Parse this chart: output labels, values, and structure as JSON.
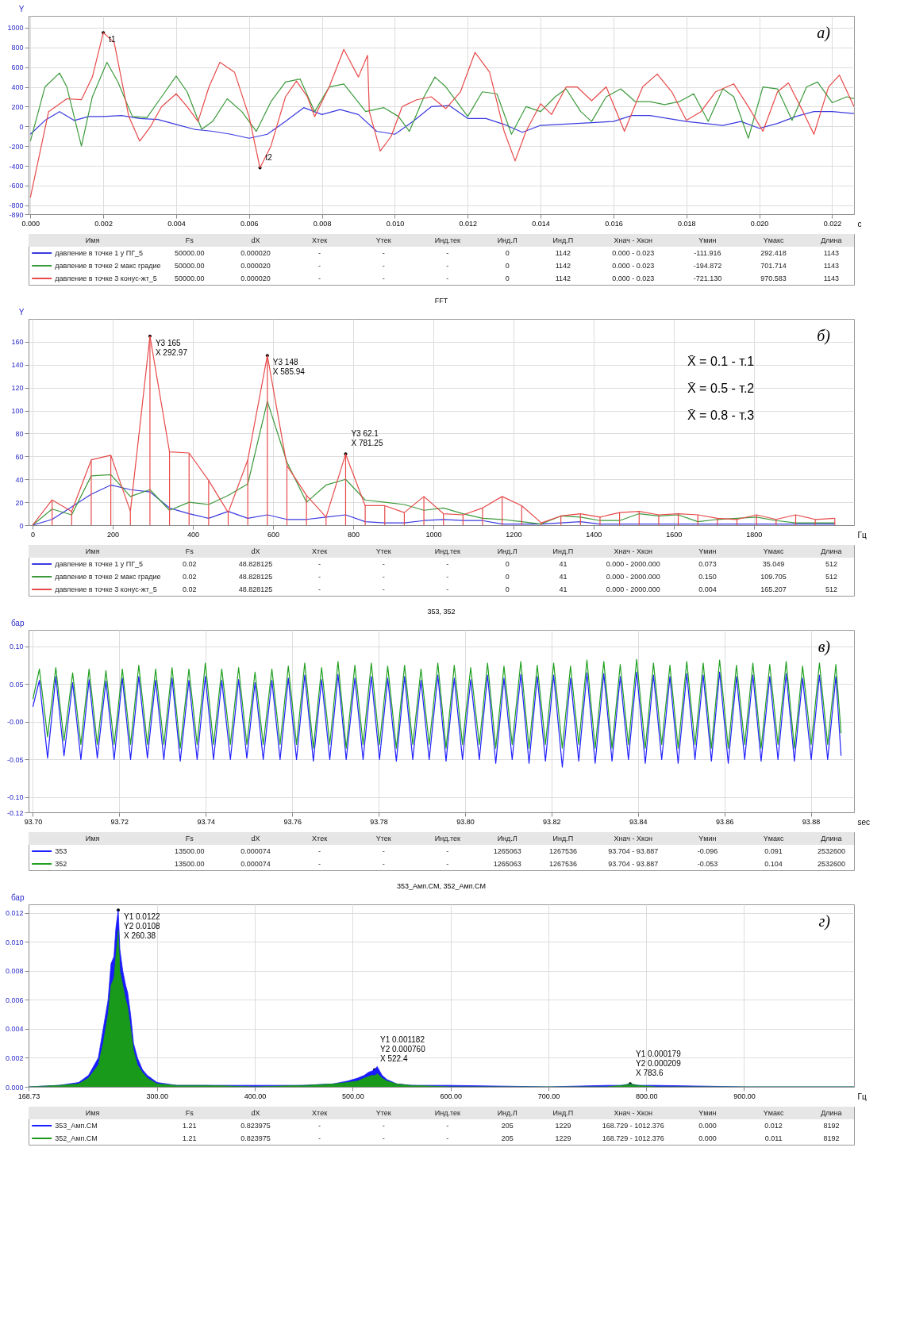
{
  "chart_data": [
    {
      "type": "line",
      "xlabel": "c",
      "ylabel": "Y",
      "xlim": [
        -5e-05,
        0.0226
      ],
      "ylim": [
        -890,
        1120
      ],
      "xticks": [
        {
          "value": 0,
          "label": "0.000"
        },
        0.002,
        0.004,
        0.006,
        0.008,
        {
          "value": 0.01,
          "label": "0.010"
        },
        0.012,
        0.014,
        0.016,
        0.018,
        {
          "value": 0.02,
          "label": "0.020"
        },
        0.022
      ],
      "yticks": [
        -890,
        -800,
        -600,
        -400,
        -200,
        0,
        200,
        400,
        600,
        800,
        1000
      ],
      "grid": true,
      "legend": "bottom",
      "series": [
        {
          "name": "давление в точке 1 у ПГ_5",
          "color": "#3a3ae0",
          "x": [
            0,
            0.0004,
            0.0008,
            0.0012,
            0.0016,
            0.002,
            0.0025,
            0.003,
            0.0035,
            0.004,
            0.0045,
            0.005,
            0.0055,
            0.006,
            0.0065,
            0.007,
            0.0075,
            0.008,
            0.0085,
            0.009,
            0.0095,
            0.01,
            0.0105,
            0.011,
            0.0115,
            0.012,
            0.0125,
            0.013,
            0.0135,
            0.014,
            0.015,
            0.016,
            0.0165,
            0.017,
            0.018,
            0.019,
            0.0195,
            0.02,
            0.0205,
            0.021,
            0.0215,
            0.022,
            0.0226
          ],
          "values": [
            -80,
            60,
            150,
            60,
            100,
            100,
            110,
            80,
            70,
            20,
            -30,
            -50,
            -80,
            -120,
            -80,
            50,
            190,
            120,
            170,
            120,
            -50,
            -80,
            50,
            200,
            210,
            80,
            80,
            20,
            -60,
            10,
            30,
            50,
            110,
            110,
            50,
            10,
            50,
            -20,
            30,
            100,
            150,
            150,
            130
          ]
        },
        {
          "name": "давление в точке 2 макс градие",
          "color": "#3c9a3c",
          "x": [
            0,
            0.0004,
            0.0008,
            0.001,
            0.0014,
            0.0017,
            0.0021,
            0.0024,
            0.0028,
            0.0032,
            0.0036,
            0.004,
            0.0043,
            0.0047,
            0.005,
            0.0054,
            0.0058,
            0.0062,
            0.0066,
            0.007,
            0.0074,
            0.0078,
            0.0082,
            0.0086,
            0.0092,
            0.0097,
            0.0101,
            0.0104,
            0.0108,
            0.0111,
            0.0114,
            0.0117,
            0.012,
            0.0124,
            0.0128,
            0.0132,
            0.0136,
            0.014,
            0.0144,
            0.0147,
            0.0151,
            0.0154,
            0.0158,
            0.0162,
            0.0166,
            0.017,
            0.0174,
            0.0178,
            0.0182,
            0.0186,
            0.019,
            0.0193,
            0.0197,
            0.0201,
            0.0205,
            0.0209,
            0.0213,
            0.0216,
            0.022,
            0.0224,
            0.0226
          ],
          "values": [
            -150,
            400,
            540,
            400,
            -200,
            300,
            650,
            450,
            100,
            90,
            300,
            510,
            350,
            -30,
            50,
            280,
            150,
            -50,
            250,
            450,
            480,
            150,
            400,
            430,
            150,
            190,
            100,
            -50,
            300,
            500,
            400,
            250,
            100,
            350,
            330,
            -80,
            200,
            150,
            300,
            380,
            150,
            50,
            300,
            380,
            250,
            250,
            220,
            250,
            330,
            50,
            380,
            300,
            -120,
            400,
            380,
            60,
            400,
            450,
            240,
            300,
            280
          ]
        },
        {
          "name": "давление в точке 3 конус-жт_5",
          "color": "#e84a4a",
          "x": [
            0,
            0.0005,
            0.001,
            0.0014,
            0.0017,
            0.002,
            0.0023,
            0.0027,
            0.003,
            0.0033,
            0.0036,
            0.004,
            0.0043,
            0.0046,
            0.0049,
            0.0052,
            0.0056,
            0.006,
            0.0063,
            0.0066,
            0.007,
            0.0073,
            0.0076,
            0.0078,
            0.0082,
            0.0086,
            0.009,
            0.00925,
            0.0093,
            0.0096,
            0.0099,
            0.0102,
            0.0106,
            0.011,
            0.0114,
            0.0118,
            0.0122,
            0.0126,
            0.013,
            0.0133,
            0.0136,
            0.014,
            0.0143,
            0.0147,
            0.015,
            0.0154,
            0.0158,
            0.0163,
            0.0168,
            0.0172,
            0.0176,
            0.018,
            0.0184,
            0.0188,
            0.0193,
            0.0197,
            0.0201,
            0.0205,
            0.0208,
            0.0212,
            0.0215,
            0.0219,
            0.0222,
            0.0226
          ],
          "values": [
            -720,
            150,
            280,
            270,
            500,
            950,
            850,
            100,
            -150,
            0,
            200,
            330,
            200,
            50,
            400,
            650,
            550,
            100,
            -420,
            -200,
            300,
            460,
            300,
            100,
            400,
            780,
            500,
            720,
            150,
            -250,
            -100,
            200,
            270,
            300,
            180,
            350,
            750,
            550,
            -50,
            -350,
            -50,
            230,
            120,
            400,
            400,
            260,
            400,
            -50,
            400,
            530,
            350,
            60,
            150,
            350,
            430,
            200,
            -50,
            350,
            440,
            150,
            -80,
            400,
            520,
            200
          ]
        }
      ],
      "annotations": [
        "а)",
        {
          "text": "t1",
          "x": 0.002,
          "y": 950
        },
        {
          "text": "t2",
          "x": 0.0063,
          "y": -420
        },
        "Имя",
        "Fs",
        "dX",
        "Xтек",
        "Yтек",
        "Инд.тек",
        "Инд.Л",
        "Инд.П",
        "Xнач - Xкон",
        "Yмин",
        "Yмакс",
        "Длина",
        "50000.00",
        "0.000020",
        "-",
        "-",
        "-",
        "0",
        "1142",
        "0.000 - 0.023",
        "-111.916",
        "292.418",
        "1143",
        "50000.00",
        "0.000020",
        "-",
        "-",
        "-",
        "0",
        "1142",
        "0.000 - 0.023",
        "-194.872",
        "701.714",
        "1143",
        "50000.00",
        "0.000020",
        "-",
        "-",
        "-",
        "0",
        "1142",
        "0.000 - 0.023",
        "-721.130",
        "970.583",
        "1143"
      ]
    },
    {
      "type": "line",
      "title": "FFT",
      "xlabel": "Гц",
      "ylabel": "Y",
      "xlim": [
        0,
        2040
      ],
      "ylim": [
        0,
        180
      ],
      "xticks": [
        0,
        200,
        400,
        600,
        800,
        1000,
        1200,
        1400,
        1600,
        1800
      ],
      "yticks": [
        0,
        20,
        40,
        60,
        80,
        100,
        120,
        140,
        160
      ],
      "grid": true,
      "legend": "bottom",
      "x": [
        0,
        48.83,
        97.66,
        146.48,
        195.31,
        244.14,
        292.97,
        341.8,
        390.63,
        439.45,
        488.28,
        537.11,
        585.94,
        634.77,
        683.59,
        732.42,
        781.25,
        830.08,
        878.91,
        927.73,
        976.56,
        1025.39,
        1074.22,
        1123.05,
        1171.88,
        1220.7,
        1269.53,
        1318.36,
        1367.19,
        1416.02,
        1464.84,
        1513.67,
        1562.5,
        1611.33,
        1660.16,
        1708.98,
        1757.81,
        1806.64,
        1855.47,
        1904.3,
        1953.13,
        2001.95
      ],
      "series": [
        {
          "name": "давление в точке 1 у ПГ_5",
          "color": "#3a3ae0",
          "values": [
            0,
            5,
            16,
            27,
            35,
            31,
            29,
            15,
            10,
            6,
            12,
            6,
            9,
            5,
            5,
            7,
            9,
            3,
            2,
            2,
            4,
            5,
            4,
            4,
            1,
            1,
            1,
            2,
            3,
            1,
            1,
            1,
            1,
            1,
            1,
            1,
            1,
            1,
            1,
            1,
            1,
            1
          ]
        },
        {
          "name": "давление в точке 2 макс градие",
          "color": "#3c9a3c",
          "values": [
            0,
            14,
            9,
            43,
            44,
            25,
            31,
            13,
            20,
            18,
            26,
            36,
            108,
            55,
            20,
            35,
            40,
            22,
            20,
            18,
            13,
            15,
            10,
            6,
            5,
            3,
            1,
            8,
            7,
            4,
            4,
            10,
            8,
            9,
            3,
            5,
            6,
            7,
            4,
            2,
            2,
            2
          ]
        },
        {
          "name": "давление в точке 3 конус-жт_5",
          "color": "#e84a4a",
          "values": [
            0,
            22,
            12,
            57,
            61,
            12,
            165,
            64,
            63,
            39,
            11,
            57,
            148,
            52,
            26,
            7,
            62,
            17,
            17,
            11,
            25,
            10,
            9,
            15,
            25,
            17,
            2,
            8,
            10,
            7,
            11,
            12,
            9,
            10,
            9,
            6,
            5,
            9,
            5,
            9,
            5,
            6
          ]
        },
        {
          "color": "#e84a4a",
          "type": "bar",
          "values": [
            0,
            22,
            12,
            57,
            61,
            12,
            165,
            64,
            63,
            39,
            11,
            57,
            148,
            52,
            26,
            7,
            62,
            17,
            17,
            11,
            25,
            10,
            9,
            15,
            25,
            17,
            2,
            8,
            10,
            7,
            11,
            12,
            9,
            10,
            9,
            6,
            5,
            9,
            5,
            9,
            5,
            6
          ]
        }
      ],
      "annotations": [
        "б)",
        "X̄ = 0.1  - т.1",
        "X̄ = 0.5  - т.2",
        "X̄ = 0.8  - т.3",
        {
          "text": "Y3 165\nX 292.97",
          "x": 292.97,
          "y": 165
        },
        {
          "text": "Y3 148\nX 585.94",
          "x": 585.94,
          "y": 148
        },
        {
          "text": "Y3 62.1\nX 781.25",
          "x": 781.25,
          "y": 62.1
        },
        "Имя",
        "Fs",
        "dX",
        "Xтек",
        "Yтек",
        "Инд.тек",
        "Инд.Л",
        "Инд.П",
        "Xнач - Xкон",
        "Yмин",
        "Yмакс",
        "Длина",
        "0.02",
        "48.828125",
        "-",
        "-",
        "-",
        "0",
        "41",
        "0.000 - 2000.000",
        "0.073",
        "35.049",
        "512",
        "0.02",
        "48.828125",
        "-",
        "-",
        "-",
        "0",
        "41",
        "0.000 - 2000.000",
        "0.150",
        "109.705",
        "512",
        "0.02",
        "48.828125",
        "-",
        "-",
        "-",
        "0",
        "41",
        "0.000 - 2000.000",
        "0.004",
        "165.207",
        "512"
      ]
    },
    {
      "type": "line",
      "title": "353, 352",
      "xlabel": "sec",
      "ylabel": "бар",
      "xlim": [
        93.699,
        93.89
      ],
      "ylim": [
        -0.12,
        0.122
      ],
      "xticks": [
        {
          "value": 93.7,
          "label": "93.70"
        },
        93.72,
        93.74,
        93.76,
        93.78,
        {
          "value": 93.8,
          "label": "93.80"
        },
        93.82,
        93.84,
        93.86,
        93.88
      ],
      "yticks": [
        -0.12,
        {
          "value": -0.1,
          "label": "-0.10"
        },
        -0.05,
        {
          "value": 0,
          "label": "-0.00"
        },
        0.05,
        {
          "value": 0.1,
          "label": "0.10"
        }
      ],
      "grid": true,
      "legend": "bottom",
      "x": [
        93.7,
        93.7015,
        93.7034,
        93.7053,
        93.7072,
        93.7092,
        93.7111,
        93.713,
        93.7149,
        93.7169,
        93.7188,
        93.7207,
        93.7226,
        93.7245,
        93.7265,
        93.7284,
        93.7303,
        93.7322,
        93.7341,
        93.7361,
        93.738,
        93.7399,
        93.7418,
        93.7437,
        93.7457,
        93.7476,
        93.7495,
        93.7514,
        93.7533,
        93.7553,
        93.7572,
        93.7591,
        93.761,
        93.7629,
        93.7649,
        93.7668,
        93.7687,
        93.7706,
        93.7725,
        93.7745,
        93.7764,
        93.7783,
        93.7802,
        93.7821,
        93.7841,
        93.786,
        93.7879,
        93.7898,
        93.7917,
        93.7937,
        93.7956,
        93.7975,
        93.7994,
        93.8013,
        93.8033,
        93.8052,
        93.8071,
        93.809,
        93.8109,
        93.8129,
        93.8148,
        93.8167,
        93.8186,
        93.8205,
        93.8225,
        93.8244,
        93.8263,
        93.8282,
        93.8301,
        93.8321,
        93.834,
        93.8359,
        93.8378,
        93.8397,
        93.8417,
        93.8436,
        93.8455,
        93.8474,
        93.8493,
        93.8513,
        93.8532,
        93.8551,
        93.857,
        93.8589,
        93.8609,
        93.8628,
        93.8647,
        93.8666,
        93.8685,
        93.8705,
        93.8724,
        93.8743,
        93.8762,
        93.8781,
        93.8801,
        93.882,
        93.8839,
        93.8858,
        93.887
      ],
      "series": [
        {
          "name": "353",
          "color": "#2020ff",
          "values": [
            0.02,
            0.055,
            -0.048,
            0.06,
            -0.045,
            0.052,
            -0.05,
            0.056,
            -0.048,
            0.054,
            -0.05,
            0.058,
            -0.05,
            0.06,
            -0.048,
            0.055,
            -0.05,
            0.058,
            -0.052,
            0.055,
            -0.05,
            0.06,
            -0.05,
            0.055,
            -0.05,
            0.056,
            -0.048,
            0.052,
            -0.05,
            0.055,
            -0.05,
            0.058,
            -0.05,
            0.062,
            -0.052,
            0.056,
            -0.05,
            0.063,
            -0.05,
            0.058,
            -0.05,
            0.06,
            -0.05,
            0.058,
            -0.052,
            0.06,
            -0.05,
            0.055,
            -0.05,
            0.062,
            -0.052,
            0.058,
            -0.05,
            0.056,
            -0.05,
            0.062,
            -0.055,
            0.058,
            -0.05,
            0.063,
            -0.055,
            0.06,
            -0.052,
            0.062,
            -0.06,
            0.058,
            -0.052,
            0.065,
            -0.055,
            0.064,
            -0.052,
            0.06,
            -0.05,
            0.066,
            -0.055,
            0.062,
            -0.05,
            0.06,
            -0.055,
            0.064,
            -0.05,
            0.062,
            -0.052,
            0.066,
            -0.055,
            0.06,
            -0.05,
            0.062,
            -0.052,
            0.06,
            -0.05,
            0.064,
            -0.052,
            0.058,
            -0.05,
            0.062,
            -0.05,
            0.06,
            -0.045
          ]
        },
        {
          "name": "352",
          "color": "#22a022",
          "values": [
            0.03,
            0.07,
            -0.02,
            0.072,
            -0.025,
            0.065,
            -0.03,
            0.07,
            -0.03,
            0.068,
            -0.03,
            0.07,
            -0.03,
            0.075,
            -0.03,
            0.07,
            -0.03,
            0.072,
            -0.035,
            0.07,
            -0.03,
            0.078,
            -0.03,
            0.07,
            -0.03,
            0.072,
            -0.03,
            0.066,
            -0.03,
            0.07,
            -0.03,
            0.074,
            -0.03,
            0.078,
            -0.035,
            0.072,
            -0.03,
            0.08,
            -0.035,
            0.075,
            -0.03,
            0.078,
            -0.03,
            0.074,
            -0.035,
            0.075,
            -0.03,
            0.07,
            -0.03,
            0.078,
            -0.035,
            0.075,
            -0.03,
            0.072,
            -0.03,
            0.078,
            -0.035,
            0.074,
            -0.03,
            0.08,
            -0.035,
            0.075,
            -0.03,
            0.078,
            -0.035,
            0.074,
            -0.03,
            0.082,
            -0.035,
            0.08,
            -0.035,
            0.076,
            -0.03,
            0.083,
            -0.035,
            0.078,
            -0.03,
            0.075,
            -0.035,
            0.08,
            -0.03,
            0.078,
            -0.035,
            0.082,
            -0.035,
            0.075,
            -0.03,
            0.078,
            -0.035,
            0.076,
            -0.03,
            0.08,
            -0.035,
            0.074,
            -0.03,
            0.078,
            -0.03,
            0.076,
            -0.015
          ]
        }
      ],
      "annotations": [
        "в)",
        "Имя",
        "Fs",
        "dX",
        "Xтек",
        "Yтек",
        "Инд.тек",
        "Инд.Л",
        "Инд.П",
        "Xнач - Xкон",
        "Yмин",
        "Yмакс",
        "Длина",
        "13500.00",
        "0.000074",
        "-",
        "-",
        "-",
        "1265063",
        "1267536",
        "93.704 - 93.887",
        "-0.096",
        "0.091",
        "2532600",
        "13500.00",
        "0.000074",
        "-",
        "-",
        "-",
        "1265063",
        "1267536",
        "93.704 - 93.887",
        "-0.053",
        "0.104",
        "2532600"
      ]
    },
    {
      "type": "area",
      "title": "353_Амп.СМ, 352_Амп.СМ",
      "xlabel": "Гц",
      "ylabel": "бар",
      "xlim": [
        168.73,
        1012.376
      ],
      "ylim": [
        0,
        0.0126
      ],
      "xticks": [
        168.73,
        {
          "value": 300,
          "label": "300.00"
        },
        {
          "value": 400,
          "label": "400.00"
        },
        {
          "value": 500,
          "label": "500.00"
        },
        {
          "value": 600,
          "label": "600.00"
        },
        {
          "value": 700,
          "label": "700.00"
        },
        {
          "value": 800,
          "label": "800.00"
        },
        {
          "value": 900,
          "label": "900.00"
        }
      ],
      "yticks": [
        {
          "value": 0,
          "label": "0.000"
        },
        0.002,
        0.004,
        0.006,
        0.008,
        {
          "value": 0.01,
          "label": "0.010"
        },
        0.012
      ],
      "grid": true,
      "legend": "bottom",
      "x": [
        168.73,
        200,
        220,
        230,
        240,
        245,
        250,
        253,
        256,
        258,
        260.38,
        262,
        265,
        268,
        270,
        273,
        276,
        280,
        285,
        290,
        300,
        320,
        350,
        400,
        450,
        480,
        495,
        505,
        512,
        516,
        520,
        522.4,
        525,
        530,
        535,
        545,
        560,
        600,
        700,
        760,
        775,
        783.6,
        792,
        810,
        900,
        1012.376
      ],
      "series": [
        {
          "name": "353_Амп.СМ",
          "color": "#1a1aff",
          "values": [
            0,
            0.0001,
            0.0003,
            0.0008,
            0.002,
            0.004,
            0.006,
            0.0085,
            0.009,
            0.011,
            0.0122,
            0.0095,
            0.008,
            0.007,
            0.0065,
            0.005,
            0.003,
            0.002,
            0.0012,
            0.0008,
            0.0003,
            0.0001,
            0.0001,
            0.0001,
            0.0001,
            0.0002,
            0.0004,
            0.0006,
            0.0008,
            0.001,
            0.0011,
            0.001182,
            0.0014,
            0.0008,
            0.0005,
            0.0002,
            0.0001,
            0.0001,
            0,
            0.0001,
            0.0001,
            0.000179,
            0.0001,
            0.0001,
            0,
            0
          ]
        },
        {
          "name": "352_Амп.СМ",
          "color": "#1a9a1a",
          "values": [
            0,
            0.0001,
            0.0002,
            0.0006,
            0.0015,
            0.003,
            0.005,
            0.007,
            0.0075,
            0.009,
            0.0108,
            0.008,
            0.007,
            0.006,
            0.0055,
            0.004,
            0.0025,
            0.0015,
            0.001,
            0.0006,
            0.0002,
            0.0001,
            0.0001,
            0,
            0.0001,
            0.0002,
            0.0003,
            0.0004,
            0.0006,
            0.0007,
            0.0008,
            0.00076,
            0.0009,
            0.0006,
            0.0004,
            0.0002,
            0.0001,
            0,
            0,
            0,
            0.0001,
            0.000209,
            0.0001,
            0,
            0,
            0
          ]
        }
      ],
      "annotations": [
        "г)",
        {
          "text": "Y1 0.0122\nY2 0.0108\nX 260.38",
          "x": 260.38,
          "y": 0.0122
        },
        {
          "text": "Y1 0.001182\nY2 0.000760\nX 522.4",
          "x": 522.4,
          "y": 0.001182
        },
        {
          "text": "Y1 0.000179\nY2 0.000209\nX 783.6",
          "x": 783.6,
          "y": 0.000209
        },
        "Имя",
        "Fs",
        "dX",
        "Xтек",
        "Yтек",
        "Инд.тек",
        "Инд.Л",
        "Инд.П",
        "Xнач - Xкон",
        "Yмин",
        "Yмакс",
        "Длина",
        "1.21",
        "0.823975",
        "-",
        "-",
        "-",
        "205",
        "1229",
        "168.729 - 1012.376",
        "0.000",
        "0.012",
        "8192",
        "1.21",
        "0.823975",
        "-",
        "-",
        "-",
        "205",
        "1229",
        "168.729 - 1012.376",
        "0.000",
        "0.011",
        "8192"
      ]
    }
  ]
}
